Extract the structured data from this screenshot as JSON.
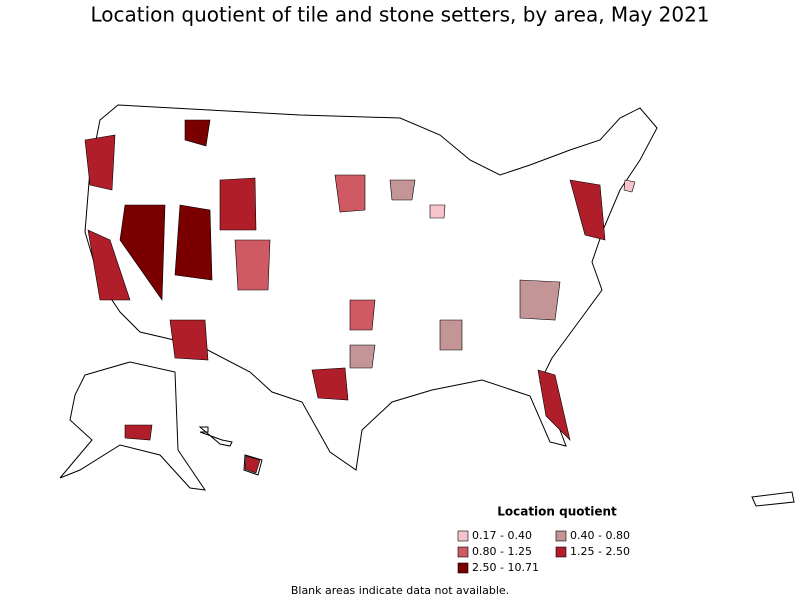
{
  "title": "Location quotient of tile and stone setters, by area, May 2021",
  "legend": {
    "title": "Location quotient",
    "items": [
      {
        "label": "0.17 - 0.40",
        "color": "#f7c4cb"
      },
      {
        "label": "0.40 - 0.80",
        "color": "#c49596"
      },
      {
        "label": "0.80 - 1.25",
        "color": "#d05a64"
      },
      {
        "label": "1.25 - 2.50",
        "color": "#b01e2a"
      },
      {
        "label": "2.50 - 10.71",
        "color": "#7a0000"
      }
    ]
  },
  "footnote": "Blank areas indicate data not available."
}
